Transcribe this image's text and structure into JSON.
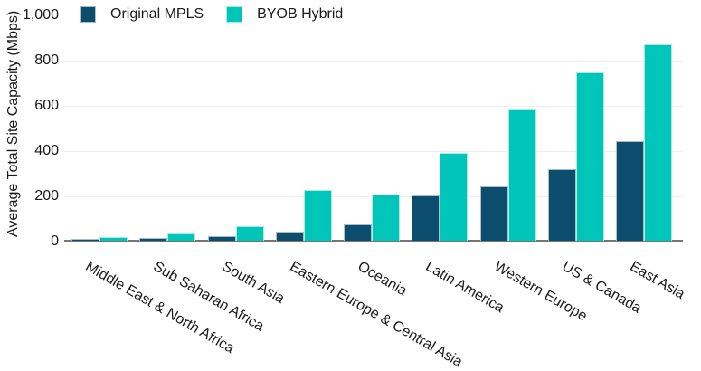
{
  "chart_data": {
    "type": "bar",
    "title": "",
    "xlabel": "",
    "ylabel": "Average Total Site Capacity (Mbps)",
    "ylim": [
      0,
      1000
    ],
    "grid": true,
    "legend_position": "top-left",
    "y_ticks": [
      {
        "label": "0",
        "value": 0
      },
      {
        "label": "200",
        "value": 200
      },
      {
        "label": "400",
        "value": 400
      },
      {
        "label": "600",
        "value": 600
      },
      {
        "label": "800",
        "value": 800
      },
      {
        "label": "1,000",
        "value": 1000
      }
    ],
    "gridline_values": [
      200,
      400,
      600,
      800
    ],
    "categories": [
      "Middle East & North Africa",
      "Sub Saharan Africa",
      "South Asia",
      "Eastern Europe & Central Asia",
      "Oceania",
      "Latin America",
      "Western Europe",
      "US & Canada",
      "East Asia"
    ],
    "series": [
      {
        "name": "Original MPLS",
        "color": "#0d4d6e",
        "edge_color": "#a8c0cd",
        "values": [
          8,
          10,
          20,
          39,
          71,
          200,
          238,
          317,
          438
        ]
      },
      {
        "name": "BYOB Hybrid",
        "color": "#00c6ba",
        "edge_color": "#abeae5",
        "values": [
          14,
          33,
          65,
          222,
          205,
          388,
          580,
          743,
          866
        ]
      }
    ]
  },
  "colors": {
    "background": "#ffffff",
    "axis_line": "#757575",
    "gridline": "#ededed",
    "text": "#1a1a1a"
  }
}
